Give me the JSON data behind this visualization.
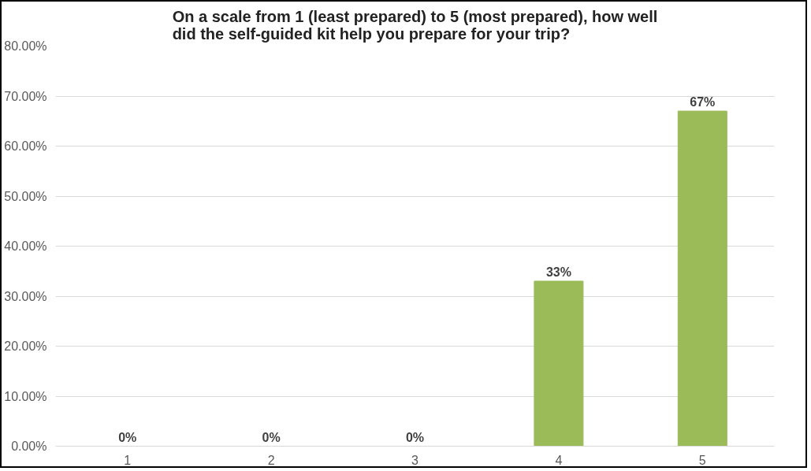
{
  "chart_data": {
    "type": "bar",
    "title": "On a scale from 1 (least prepared) to 5 (most prepared), how well\ndid the self-guided kit help you prepare for your trip?",
    "categories": [
      "1",
      "2",
      "3",
      "4",
      "5"
    ],
    "values": [
      0,
      0,
      0,
      33,
      67
    ],
    "color": "#9bbb59",
    "value_labels": [
      "0%",
      "0%",
      "0%",
      "33%",
      "67%"
    ],
    "ylim": [
      0,
      80
    ],
    "yticks": [
      {
        "value": 0,
        "label": "0.00%"
      },
      {
        "value": 10,
        "label": "10.00%"
      },
      {
        "value": 20,
        "label": "20.00%"
      },
      {
        "value": 30,
        "label": "30.00%"
      },
      {
        "value": 40,
        "label": "40.00%"
      },
      {
        "value": 50,
        "label": "50.00%"
      },
      {
        "value": 60,
        "label": "60.00%"
      },
      {
        "value": 70,
        "label": "70.00%"
      },
      {
        "value": 80,
        "label": "80.00%"
      }
    ],
    "grid": "y"
  }
}
